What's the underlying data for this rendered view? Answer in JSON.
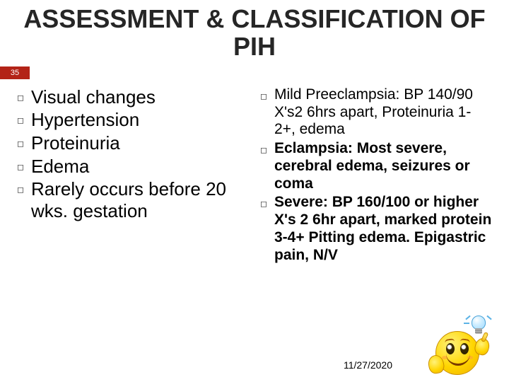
{
  "title_fontsize": 36,
  "title": "ASSESSMENT & CLASSIFICATION OF PIH",
  "slide_number": "35",
  "slide_number_bg": "#b32317",
  "left_items": [
    "Visual changes",
    "Hypertension",
    "Proteinuria",
    "Edema",
    "Rarely occurs before 20 wks. gestation"
  ],
  "right_items": [
    {
      "lead": "Mild Preeclampsia:",
      "lead_weight": "normal",
      "rest": " BP 140/90 X's2 6hrs apart, Proteinuria 1-2+, edema",
      "rest_weight": "normal"
    },
    {
      "text": "Eclampsia: Most severe, cerebral edema, seizures or coma"
    },
    {
      "text": "Severe: BP 160/100 or higher X's 2 6hr apart, marked protein 3-4+ Pitting edema. Epigastric pain, N/V"
    }
  ],
  "date": "11/27/2020",
  "bullet_glyph": "◻",
  "colors": {
    "title": "#262626",
    "text": "#000000",
    "background": "#ffffff"
  },
  "left_fontsize": 26,
  "right_fontsize": 21
}
